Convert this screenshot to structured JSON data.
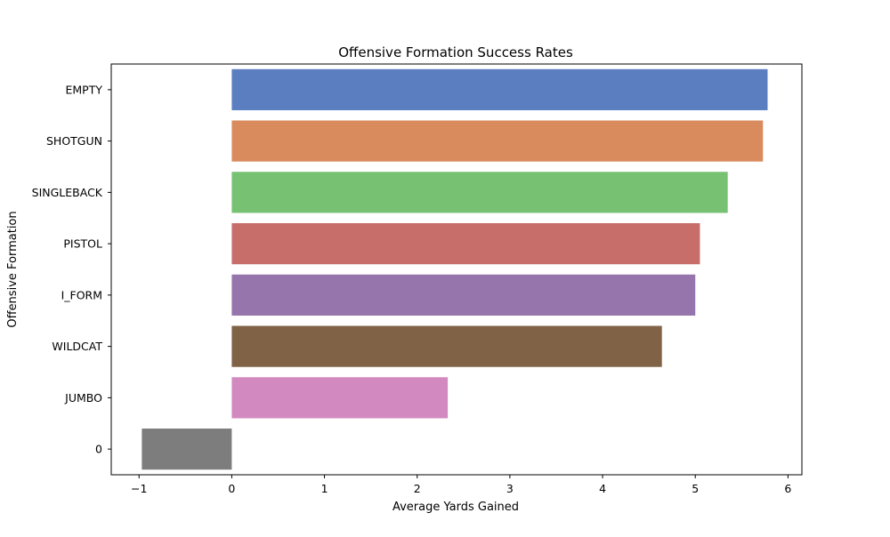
{
  "chart_data": {
    "type": "bar",
    "orientation": "horizontal",
    "title": "Offensive Formation Success Rates",
    "xlabel": "Average Yards Gained",
    "ylabel": "Offensive Formation",
    "categories": [
      "EMPTY",
      "SHOTGUN",
      "SINGLEBACK",
      "PISTOL",
      "I_FORM",
      "WILDCAT",
      "JUMBO",
      "0"
    ],
    "values": [
      5.78,
      5.73,
      5.35,
      5.05,
      5.0,
      4.64,
      2.33,
      -0.97
    ],
    "colors": [
      "#5b7ec0",
      "#d98b5e",
      "#76c172",
      "#c76e6b",
      "#9575ac",
      "#806246",
      "#d289bf",
      "#7d7d7d"
    ],
    "xlim": [
      -1.3,
      6.15
    ],
    "xticks": [
      -1,
      0,
      1,
      2,
      3,
      4,
      5,
      6
    ],
    "grid": false,
    "legend": "none"
  }
}
